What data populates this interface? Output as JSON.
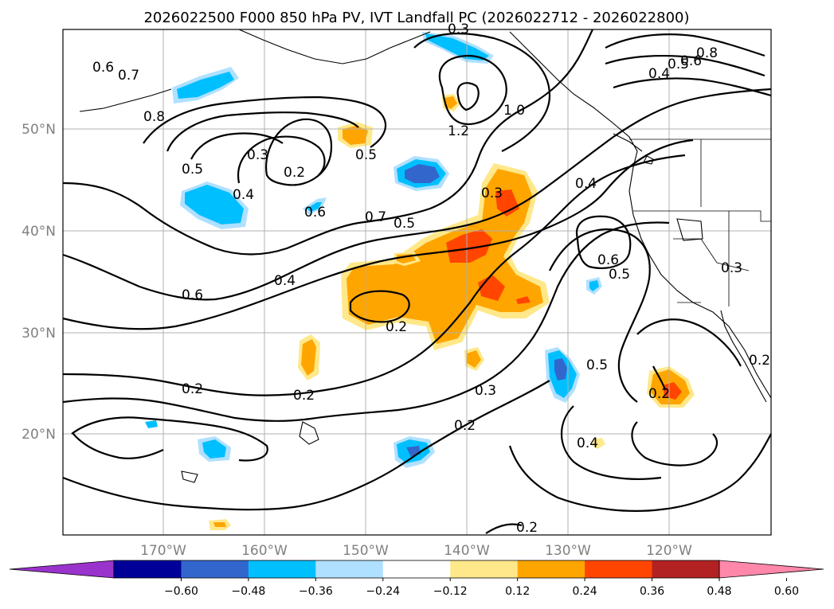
{
  "title": "2026022500 F000 850 hPa PV, IVT Landfall PC (2026022712 - 2026022800)",
  "lat_labels": [
    "50°N",
    "40°N",
    "30°N",
    "20°N"
  ],
  "lon_labels": [
    "170°W",
    "160°W",
    "150°W",
    "140°W",
    "130°W",
    "120°W"
  ],
  "contour_labels": [
    "0.6",
    "0.7",
    "0.8",
    "0.5",
    "0.3",
    "0.2",
    "0.5",
    "0.4",
    "0.6",
    "0.7",
    "0.5",
    "0.4",
    "0.6",
    "0.2",
    "1.2",
    "1.0",
    "0.3",
    "0.4",
    "0.6",
    "0.5",
    "0.3",
    "0.2",
    "0.2",
    "0.3",
    "0.2",
    "0.5",
    "0.2",
    "0.4",
    "0.8",
    "0.6",
    "0.5",
    "0.4",
    "0.2",
    "0.2",
    "0.3"
  ],
  "colorbar": {
    "colors": [
      "#9933cc",
      "#000099",
      "#3366cc",
      "#00bfff",
      "#b0e0ff",
      "#ffffff",
      "#ffe88a",
      "#ffa500",
      "#ff4500",
      "#b22222",
      "#ff88aa"
    ],
    "tick_labels": [
      "−0.60",
      "−0.48",
      "−0.36",
      "−0.24",
      "−0.12",
      "0.12",
      "0.24",
      "0.36",
      "0.48",
      "0.60"
    ]
  }
}
